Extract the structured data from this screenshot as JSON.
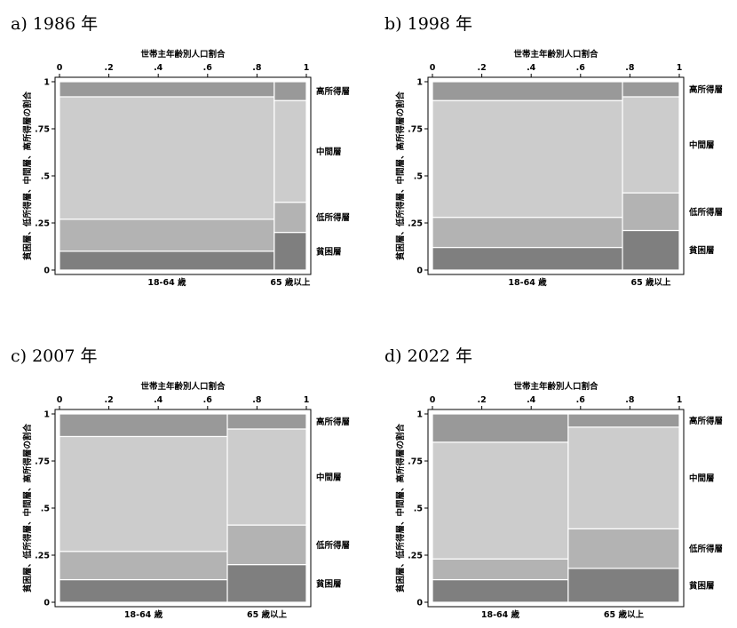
{
  "colors": {
    "background": "#ffffff",
    "frame": "#000000",
    "poor": "#7f7f7f",
    "low_income": "#b3b3b3",
    "middle": "#cccccc",
    "high_income": "#999999",
    "separator": "#ffffff"
  },
  "shared": {
    "top_axis_label": "世帯主年齢別人口割合",
    "y_axis_label": "貧困層、低所得層、中間層、高所得層の割合",
    "x_ticks": [
      "0",
      ".2",
      ".4",
      ".6",
      ".8",
      "1"
    ],
    "y_ticks": [
      "0",
      ".25",
      ".5",
      ".75",
      "1"
    ]
  },
  "chart_data": [
    {
      "type": "mosaic",
      "title": "a) 1986 年",
      "xlabel": "世帯主年齢別人口割合",
      "ylabel": "貧困層、低所得層、中間層、高所得層の割合",
      "xlim": [
        0,
        1
      ],
      "ylim": [
        0,
        1
      ],
      "layer_labels": [
        "貧困層",
        "低所得層",
        "中間層",
        "高所得層"
      ],
      "columns": [
        {
          "name": "18-64 歳",
          "width": 0.87,
          "cumulative": [
            0.1,
            0.27,
            0.92,
            1.0
          ]
        },
        {
          "name": "65 歳以上",
          "width": 0.13,
          "cumulative": [
            0.2,
            0.36,
            0.9,
            1.0
          ]
        }
      ]
    },
    {
      "type": "mosaic",
      "title": "b) 1998 年",
      "xlabel": "世帯主年齢別人口割合",
      "ylabel": "貧困層、低所得層、中間層、高所得層の割合",
      "xlim": [
        0,
        1
      ],
      "ylim": [
        0,
        1
      ],
      "layer_labels": [
        "貧困層",
        "低所得層",
        "中間層",
        "高所得層"
      ],
      "columns": [
        {
          "name": "18-64 歳",
          "width": 0.77,
          "cumulative": [
            0.12,
            0.28,
            0.9,
            1.0
          ]
        },
        {
          "name": "65 歳以上",
          "width": 0.23,
          "cumulative": [
            0.21,
            0.41,
            0.92,
            1.0
          ]
        }
      ]
    },
    {
      "type": "mosaic",
      "title": "c) 2007 年",
      "xlabel": "世帯主年齢別人口割合",
      "ylabel": "貧困層、低所得層、中間層、高所得層の割合",
      "xlim": [
        0,
        1
      ],
      "ylim": [
        0,
        1
      ],
      "layer_labels": [
        "貧困層",
        "低所得層",
        "中間層",
        "高所得層"
      ],
      "columns": [
        {
          "name": "18-64 歳",
          "width": 0.68,
          "cumulative": [
            0.12,
            0.27,
            0.88,
            1.0
          ]
        },
        {
          "name": "65 歳以上",
          "width": 0.32,
          "cumulative": [
            0.2,
            0.41,
            0.92,
            1.0
          ]
        }
      ]
    },
    {
      "type": "mosaic",
      "title": "d) 2022 年",
      "xlabel": "世帯主年齢別人口割合",
      "ylabel": "貧困層、低所得層、中間層、高所得層の割合",
      "xlim": [
        0,
        1
      ],
      "ylim": [
        0,
        1
      ],
      "layer_labels": [
        "貧困層",
        "低所得層",
        "中間層",
        "高所得層"
      ],
      "columns": [
        {
          "name": "18-64 歳",
          "width": 0.55,
          "cumulative": [
            0.12,
            0.23,
            0.85,
            1.0
          ]
        },
        {
          "name": "65 歳以上",
          "width": 0.45,
          "cumulative": [
            0.18,
            0.39,
            0.93,
            1.0
          ]
        }
      ]
    }
  ]
}
